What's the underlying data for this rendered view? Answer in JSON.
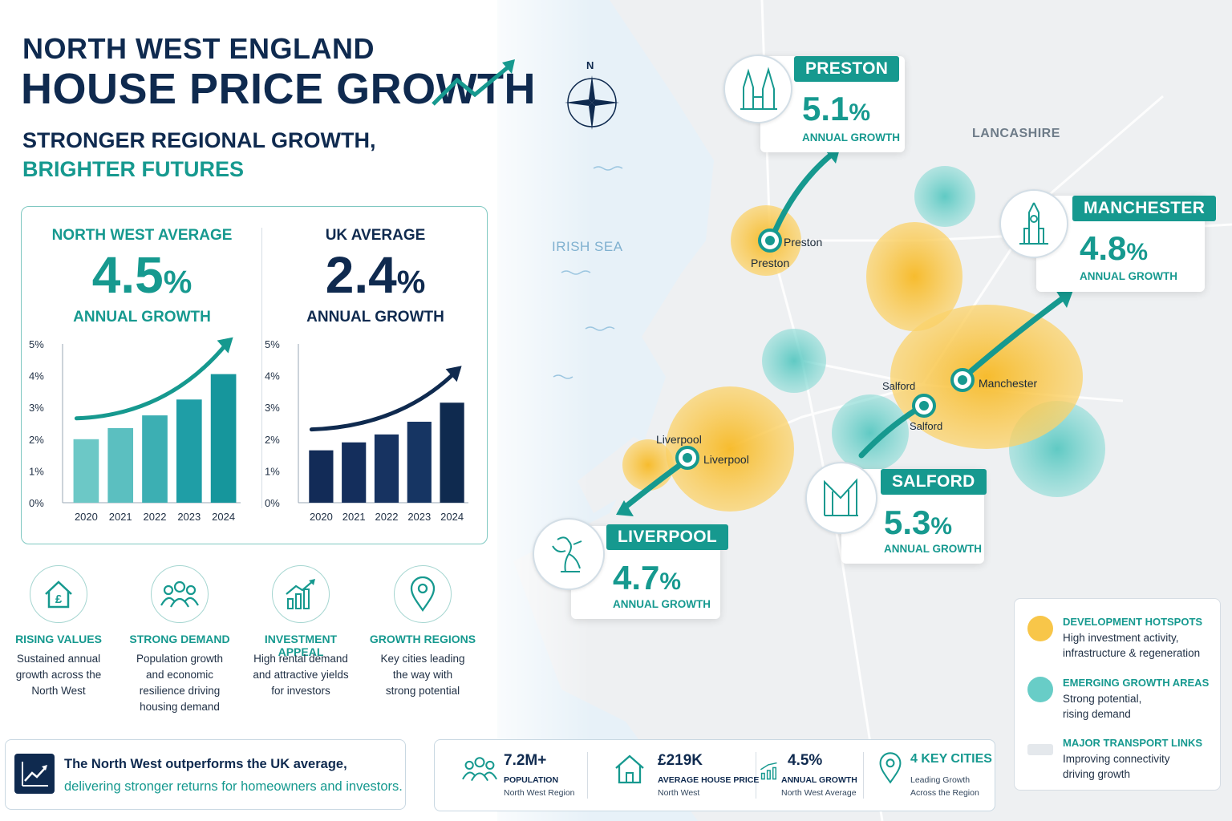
{
  "header": {
    "title_line1": "NORTH WEST ENGLAND",
    "title_line2": "HOUSE PRICE GROWTH",
    "subtitle_line1": "STRONGER REGIONAL GROWTH,",
    "subtitle_line2": "BRIGHTER FUTURES"
  },
  "comparison": {
    "north_west": {
      "label": "NORTH WEST AVERAGE",
      "value": "4.5",
      "unit": "%",
      "sub": "ANNUAL GROWTH"
    },
    "uk": {
      "label": "UK AVERAGE",
      "value": "2.4",
      "unit": "%",
      "sub": "ANNUAL GROWTH"
    }
  },
  "chart_data": [
    {
      "type": "bar",
      "categories": [
        "2020",
        "2021",
        "2022",
        "2023",
        "2024"
      ],
      "values": [
        2.0,
        2.35,
        2.75,
        3.25,
        4.05
      ],
      "yticks": [
        "0%",
        "1%",
        "2%",
        "3%",
        "4%",
        "5%"
      ],
      "ylim": [
        0,
        5
      ],
      "colors": [
        "#6cc8c6",
        "#5bbfc0",
        "#3cafb3",
        "#1f9ea6",
        "#16969c"
      ]
    },
    {
      "type": "bar",
      "categories": [
        "2020",
        "2021",
        "2022",
        "2023",
        "2024"
      ],
      "values": [
        1.65,
        1.9,
        2.15,
        2.55,
        3.15
      ],
      "yticks": [
        "0%",
        "1%",
        "2%",
        "3%",
        "4%",
        "5%"
      ],
      "ylim": [
        0,
        5
      ],
      "colors": [
        "#122b57",
        "#142e5c",
        "#173361",
        "#163563",
        "#0f2a4f"
      ]
    }
  ],
  "features": [
    {
      "icon": "house-pound-icon",
      "title": "RISING VALUES",
      "lines": [
        "Sustained annual",
        "growth across the",
        "North West"
      ]
    },
    {
      "icon": "people-group-icon",
      "title": "STRONG DEMAND",
      "lines": [
        "Population growth",
        "and economic",
        "resilience driving",
        "housing demand"
      ]
    },
    {
      "icon": "bar-chart-growth-icon",
      "title": "INVESTMENT APPEAL",
      "lines": [
        "High rental demand",
        "and attractive yields",
        "for investors"
      ]
    },
    {
      "icon": "map-pin-icon",
      "title": "GROWTH REGIONS",
      "lines": [
        "Key cities leading",
        "the way with",
        "strong potential"
      ]
    }
  ],
  "banner": {
    "line1": "The North West outperforms the UK average,",
    "line2": "delivering stronger returns for homeowners and investors."
  },
  "stats": [
    {
      "icon": "people-group-icon",
      "value": "7.2M+",
      "label": "POPULATION",
      "sub": "North West Region"
    },
    {
      "icon": "house-icon",
      "value": "£219K",
      "label": "AVERAGE HOUSE PRICE",
      "sub": "North West"
    },
    {
      "icon": "bar-chart-growth-icon",
      "value": "4.5%",
      "label": "ANNUAL GROWTH",
      "sub": "North West Average"
    },
    {
      "icon": "map-pin-icon",
      "value": "4 KEY CITIES",
      "label": "Leading Growth",
      "sub": "Across the Region"
    }
  ],
  "cities": [
    {
      "name": "PRESTON",
      "value": "5.1",
      "unit": "%",
      "sub": "ANNUAL GROWTH",
      "map_label": "Preston",
      "map_label2": "Preston"
    },
    {
      "name": "MANCHESTER",
      "value": "4.8",
      "unit": "%",
      "sub": "ANNUAL GROWTH",
      "map_label": "Manchester"
    },
    {
      "name": "SALFORD",
      "value": "5.3",
      "unit": "%",
      "sub": "ANNUAL GROWTH",
      "map_label": "Salford",
      "map_label2": "Salford"
    },
    {
      "name": "LIVERPOOL",
      "value": "4.7",
      "unit": "%",
      "sub": "ANNUAL GROWTH",
      "map_label": "Liverpool",
      "map_label2": "Liverpool"
    }
  ],
  "map": {
    "compass": "N",
    "region_label": "LANCASHIRE",
    "sea_label": "IRISH SEA"
  },
  "legend": [
    {
      "title": "DEVELOPMENT HOTSPOTS",
      "lines": [
        "High investment activity,",
        "infrastructure & regeneration"
      ],
      "color": "#f7c035"
    },
    {
      "title": "EMERGING GROWTH AREAS",
      "lines": [
        "Strong potential,",
        "rising demand"
      ],
      "color": "#4dc4bd"
    },
    {
      "title": "MAJOR TRANSPORT LINKS",
      "lines": [
        "Improving connectivity",
        "driving growth"
      ],
      "color": "#e4e8ec"
    }
  ],
  "colors": {
    "teal": "#16998f",
    "navy": "#0f2a4f",
    "gold": "#f7c035"
  }
}
